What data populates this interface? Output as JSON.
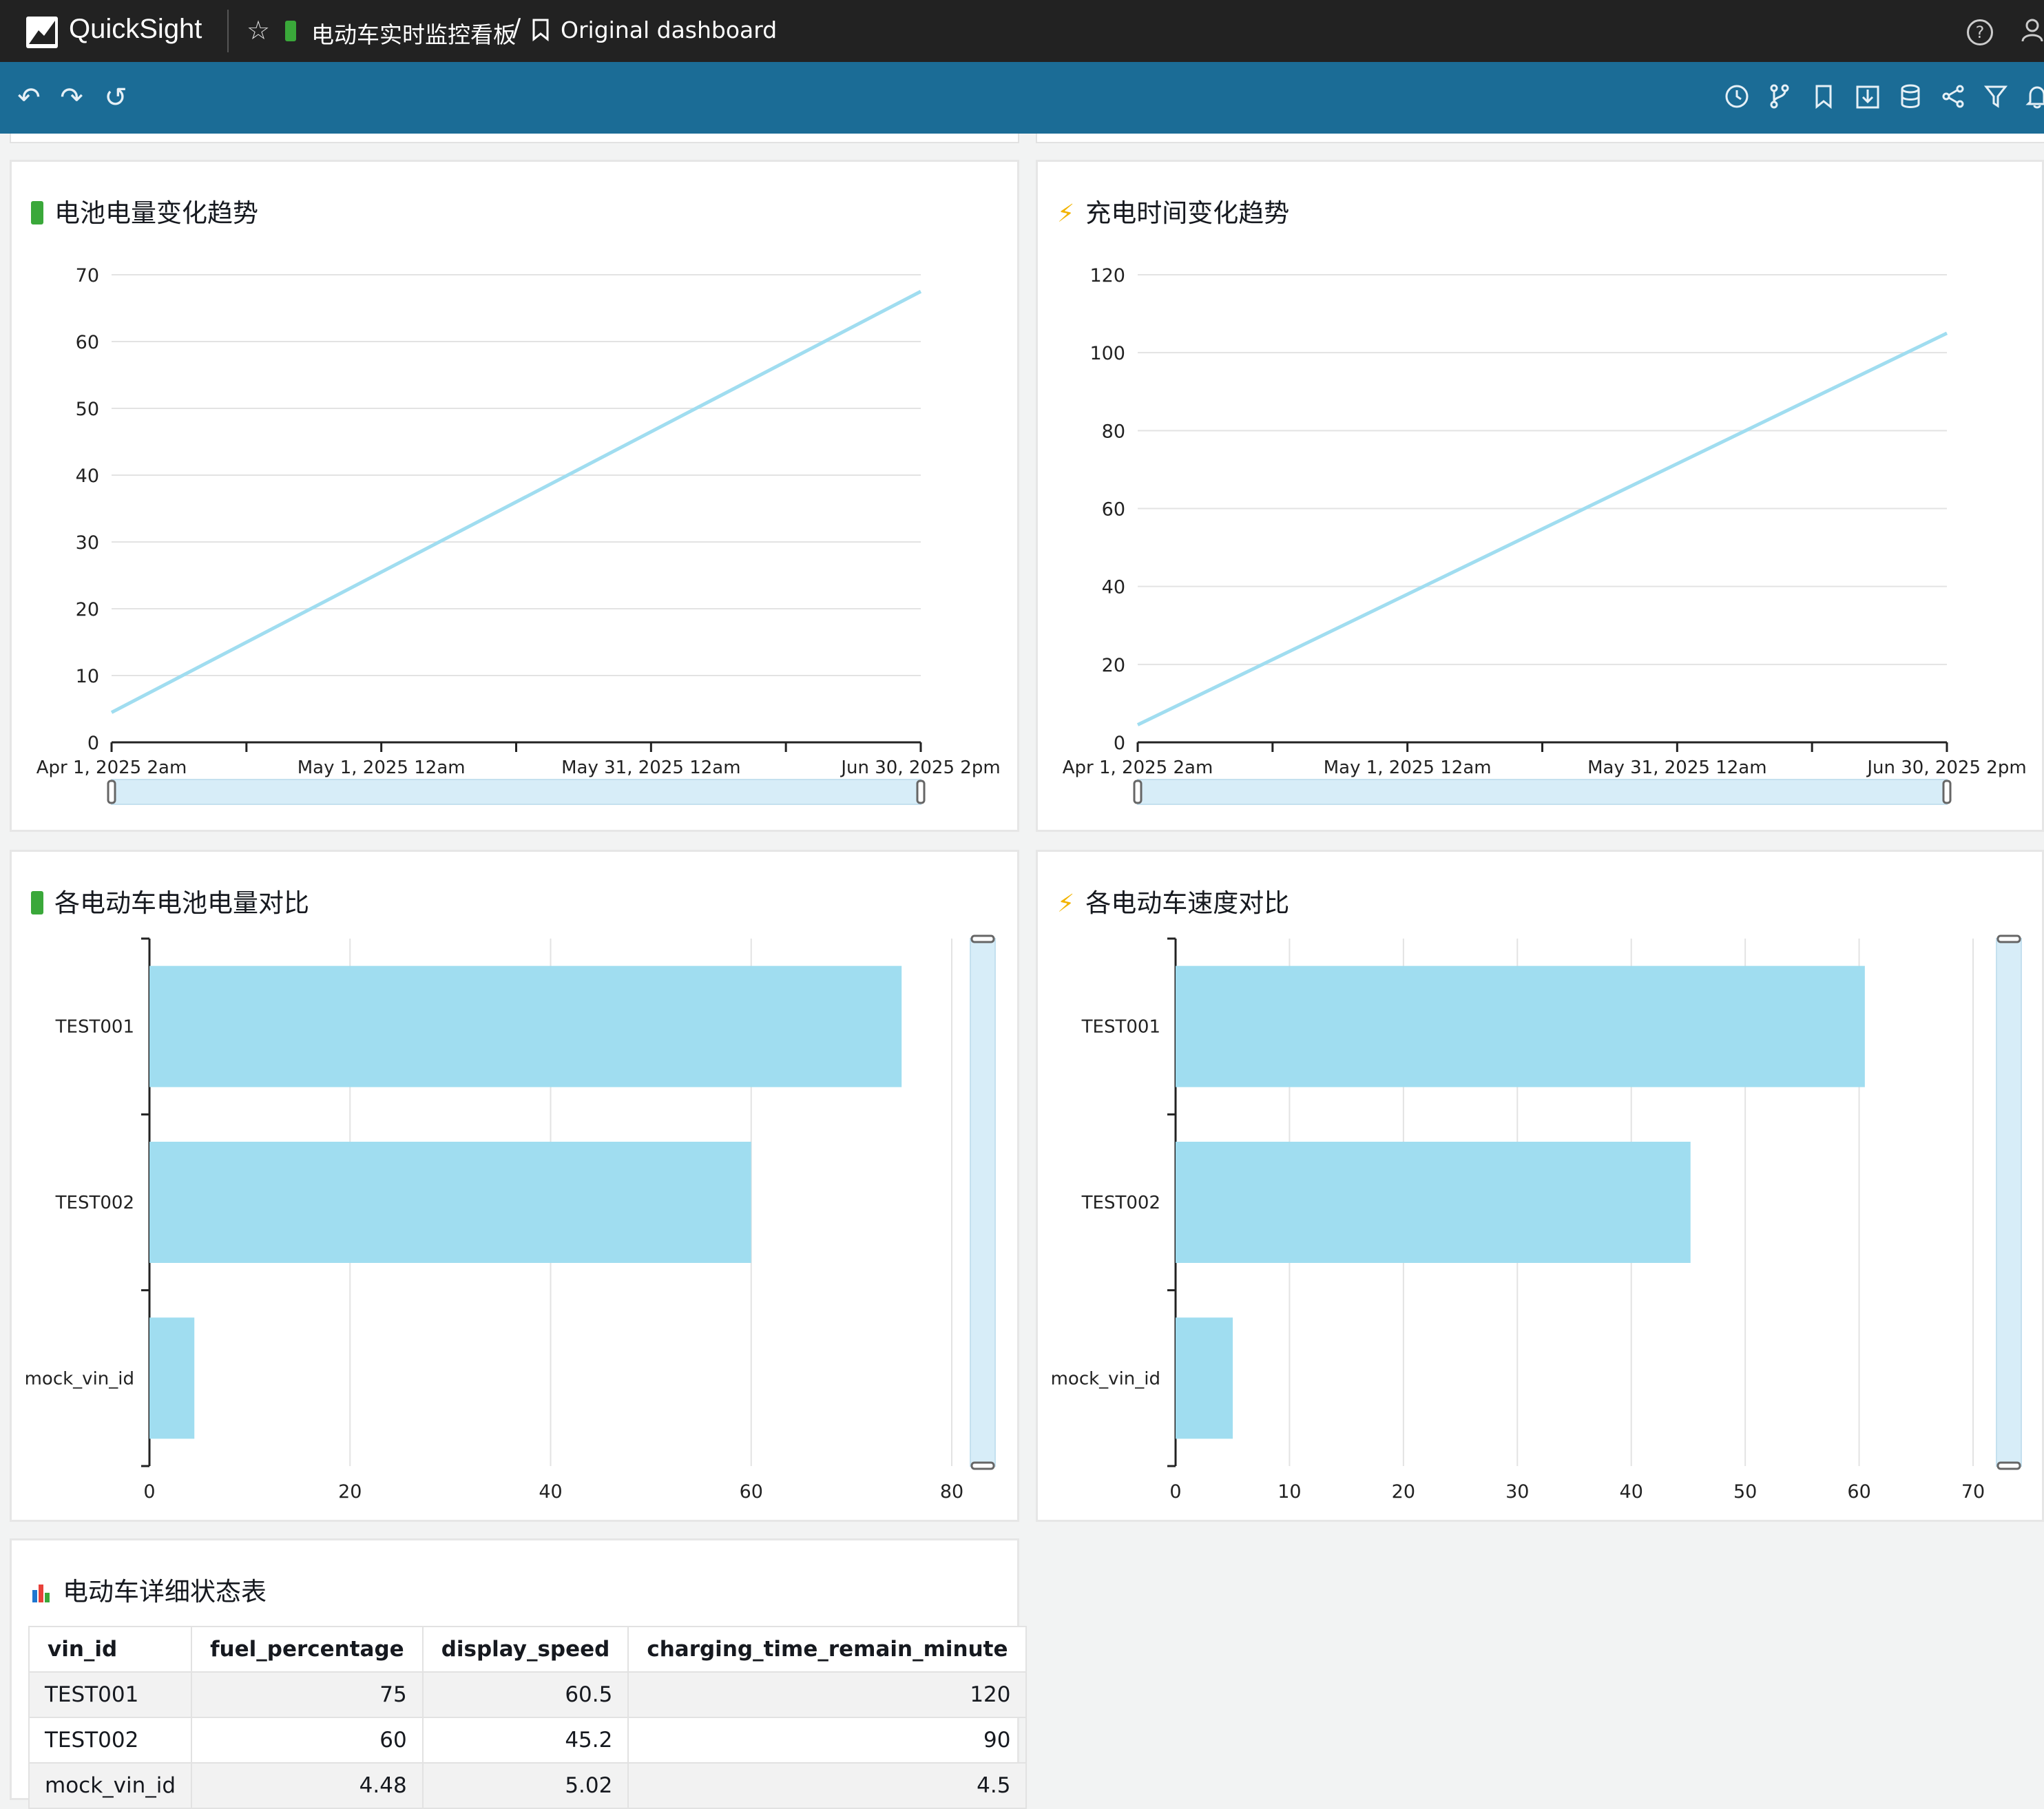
{
  "app": {
    "name": "QuickSight",
    "analysis_name": "电动车实时监控看板",
    "breadcrumb_separator": "/",
    "dashboard_name": "Original dashboard"
  },
  "icons": {
    "logo": "quicksight-logo-icon",
    "favorite": "star-icon",
    "battery": "battery-icon",
    "bookmark": "bookmark-icon",
    "help": "help-icon",
    "user": "user-icon",
    "toolbar_left": [
      "undo-icon",
      "redo-icon",
      "reset-icon"
    ],
    "toolbar_right": [
      "clock-icon",
      "branch-icon",
      "bookmark-icon",
      "download-icon",
      "database-icon",
      "share-icon",
      "filter-icon",
      "bell-icon"
    ]
  },
  "colors": {
    "topbar": "#222222",
    "toolbar": "#1b6c96",
    "series": "#a0ddf0",
    "battery_icon": "#3aa83a",
    "bolt_icon": "#f2b300"
  },
  "visuals": {
    "battery_trend": {
      "title": "电池电量变化趋势",
      "icon": "battery-icon"
    },
    "charging_trend": {
      "title": "充电时间变化趋势",
      "icon": "lightning-icon"
    },
    "battery_compare": {
      "title": "各电动车电池电量对比",
      "icon": "battery-icon"
    },
    "speed_compare": {
      "title": "各电动车速度对比",
      "icon": "lightning-icon"
    },
    "detail_table": {
      "title": "电动车详细状态表",
      "icon": "bar-chart-icon",
      "columns": [
        "vin_id",
        "fuel_percentage",
        "display_speed",
        "charging_time_remain_minute"
      ],
      "rows": [
        [
          "TEST001",
          "75",
          "60.5",
          "120"
        ],
        [
          "TEST002",
          "60",
          "45.2",
          "90"
        ],
        [
          "mock_vin_id",
          "4.48",
          "5.02",
          "4.5"
        ]
      ]
    }
  },
  "chart_data": [
    {
      "type": "line",
      "title": "电池电量变化趋势",
      "x_ticks": [
        "Apr 1, 2025 2am",
        "May 1, 2025 12am",
        "May 31, 2025 12am",
        "Jun 30, 2025 2pm"
      ],
      "x": [
        "Apr 1, 2025 2am",
        "Jun 30, 2025 2pm"
      ],
      "values": [
        4.48,
        67.5
      ],
      "ylim": [
        0,
        70
      ],
      "yticks": [
        0,
        10,
        20,
        30,
        40,
        50,
        60,
        70
      ],
      "grid": true,
      "range_slider": true
    },
    {
      "type": "line",
      "title": "充电时间变化趋势",
      "x_ticks": [
        "Apr 1, 2025 2am",
        "May 1, 2025 12am",
        "May 31, 2025 12am",
        "Jun 30, 2025 2pm"
      ],
      "x": [
        "Apr 1, 2025 2am",
        "Jun 30, 2025 2pm"
      ],
      "values": [
        4.5,
        105
      ],
      "ylim": [
        0,
        120
      ],
      "yticks": [
        0,
        20,
        40,
        60,
        80,
        100,
        120
      ],
      "grid": true,
      "range_slider": true
    },
    {
      "type": "bar",
      "orientation": "horizontal",
      "title": "各电动车电池电量对比",
      "categories": [
        "TEST001",
        "TEST002",
        "mock_vin_id"
      ],
      "values": [
        75,
        60,
        4.48
      ],
      "xlim": [
        0,
        80
      ],
      "xticks": [
        0,
        20,
        40,
        60,
        80
      ],
      "grid": true
    },
    {
      "type": "bar",
      "orientation": "horizontal",
      "title": "各电动车速度对比",
      "categories": [
        "TEST001",
        "TEST002",
        "mock_vin_id"
      ],
      "values": [
        60.5,
        45.2,
        5.02
      ],
      "xlim": [
        0,
        70
      ],
      "xticks": [
        0,
        10,
        20,
        30,
        40,
        50,
        60,
        70
      ],
      "grid": true
    }
  ]
}
